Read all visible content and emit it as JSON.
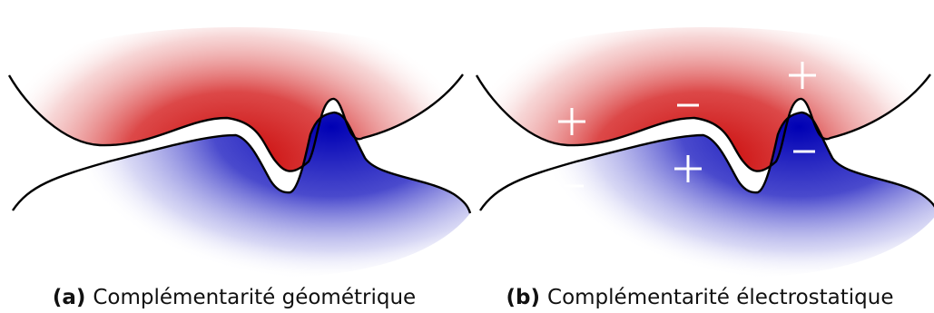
{
  "panels": [
    {
      "id": "a",
      "label": "(a)",
      "caption": "Complémentarité géométrique",
      "charges": []
    },
    {
      "id": "b",
      "label": "(b)",
      "caption": "Complémentarité électrostatique",
      "charges": [
        {
          "sign": "+",
          "on": "top-surface"
        },
        {
          "sign": "−",
          "on": "top-surface"
        },
        {
          "sign": "+",
          "on": "top-surface"
        },
        {
          "sign": "+",
          "on": "bottom-surface"
        },
        {
          "sign": "−",
          "on": "bottom-surface"
        },
        {
          "sign": "−",
          "on": "bottom-surface"
        }
      ]
    }
  ],
  "colors": {
    "top_shape": "#c80000",
    "bottom_shape": "#0000b4",
    "outline": "#000000",
    "charge_marks": "#ffffff",
    "caption_text": "#111111"
  }
}
